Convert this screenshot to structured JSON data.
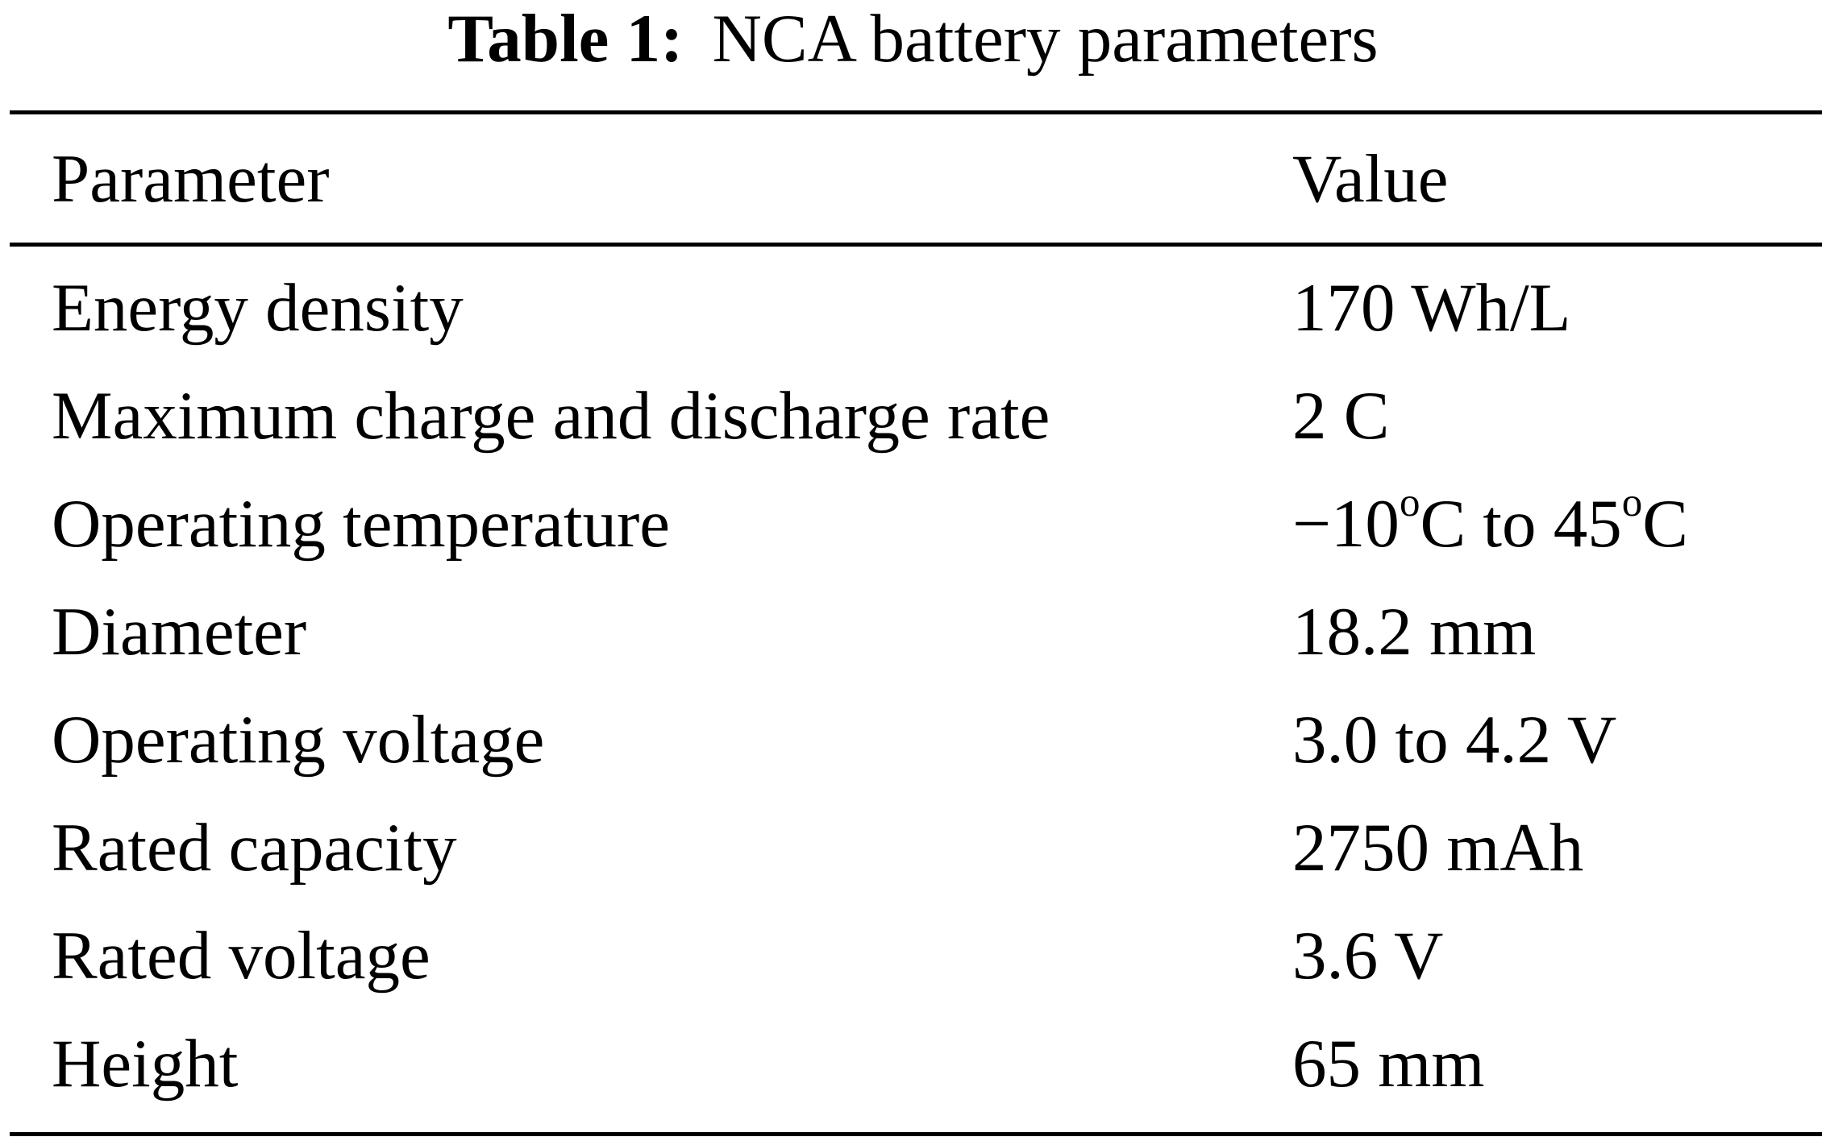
{
  "table": {
    "caption_label": "Table 1:",
    "caption_text": "NCA battery parameters",
    "header": {
      "parameter": "Parameter",
      "value": "Value"
    },
    "rows": [
      {
        "parameter": "Energy density",
        "value": "170 Wh/L"
      },
      {
        "parameter": "Maximum charge and discharge rate",
        "value": "2 C"
      },
      {
        "parameter": "Operating temperature",
        "value": "−10°C to 45°C"
      },
      {
        "parameter": "Diameter",
        "value": "18.2 mm"
      },
      {
        "parameter": "Operating voltage",
        "value": "3.0 to 4.2 V"
      },
      {
        "parameter": "Rated capacity",
        "value": "2750 mAh"
      },
      {
        "parameter": "Rated voltage",
        "value": "3.6 V"
      },
      {
        "parameter": "Height",
        "value": "65 mm"
      }
    ]
  }
}
